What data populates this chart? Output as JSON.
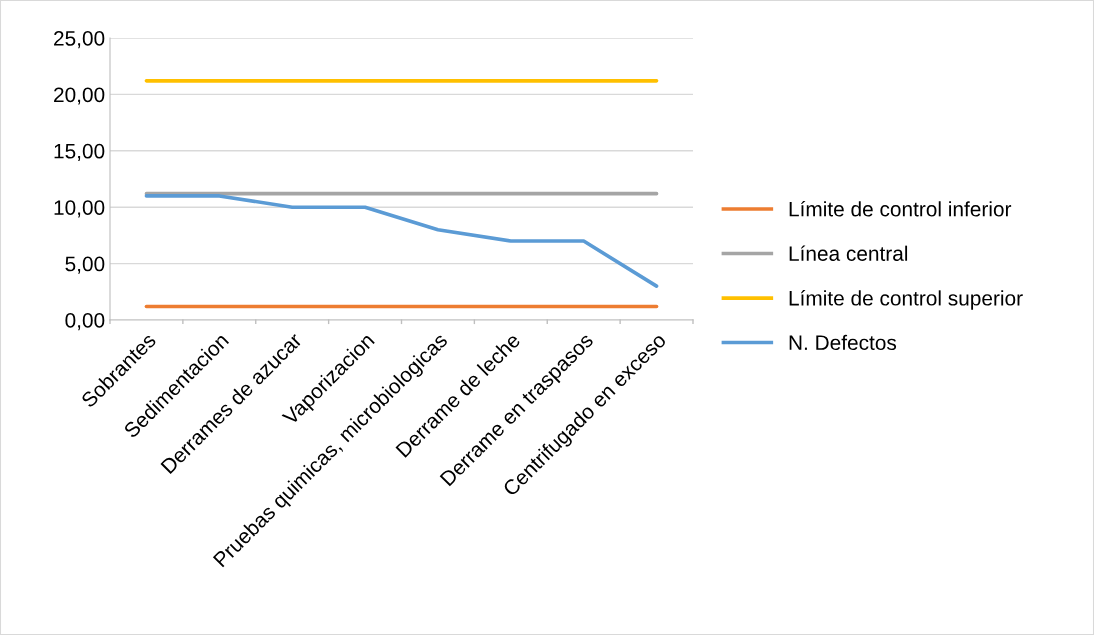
{
  "chart_data": {
    "type": "line",
    "categories": [
      "Sobrantes",
      "Sedimentacion",
      "Derrames de azucar",
      "Vaporizacion",
      "Pruebas quimicas, microbiologicas",
      "Derrame de leche",
      "Derrame en traspasos",
      "Centrifugado en exceso"
    ],
    "series": [
      {
        "name": "Límite de control inferior",
        "color": "#ed7d31",
        "values": [
          1.2,
          1.2,
          1.2,
          1.2,
          1.2,
          1.2,
          1.2,
          1.2
        ]
      },
      {
        "name": "Línea central",
        "color": "#a5a5a5",
        "values": [
          11.2,
          11.2,
          11.2,
          11.2,
          11.2,
          11.2,
          11.2,
          11.2
        ]
      },
      {
        "name": "Límite de control superior",
        "color": "#ffc000",
        "values": [
          21.2,
          21.2,
          21.2,
          21.2,
          21.2,
          21.2,
          21.2,
          21.2
        ]
      },
      {
        "name": "N. Defectos",
        "color": "#5b9bd5",
        "values": [
          11,
          11,
          10,
          10,
          8,
          7,
          7,
          3
        ]
      }
    ],
    "ylim": [
      0,
      25
    ],
    "yticks": [
      {
        "value": 0,
        "label": "0,00"
      },
      {
        "value": 5,
        "label": "5,00"
      },
      {
        "value": 10,
        "label": "10,00"
      },
      {
        "value": 15,
        "label": "15,00"
      },
      {
        "value": 20,
        "label": "20,00"
      },
      {
        "value": 25,
        "label": "25,00"
      }
    ],
    "grid": "y",
    "legend": "right",
    "marker": "none",
    "line_style": "solid"
  }
}
